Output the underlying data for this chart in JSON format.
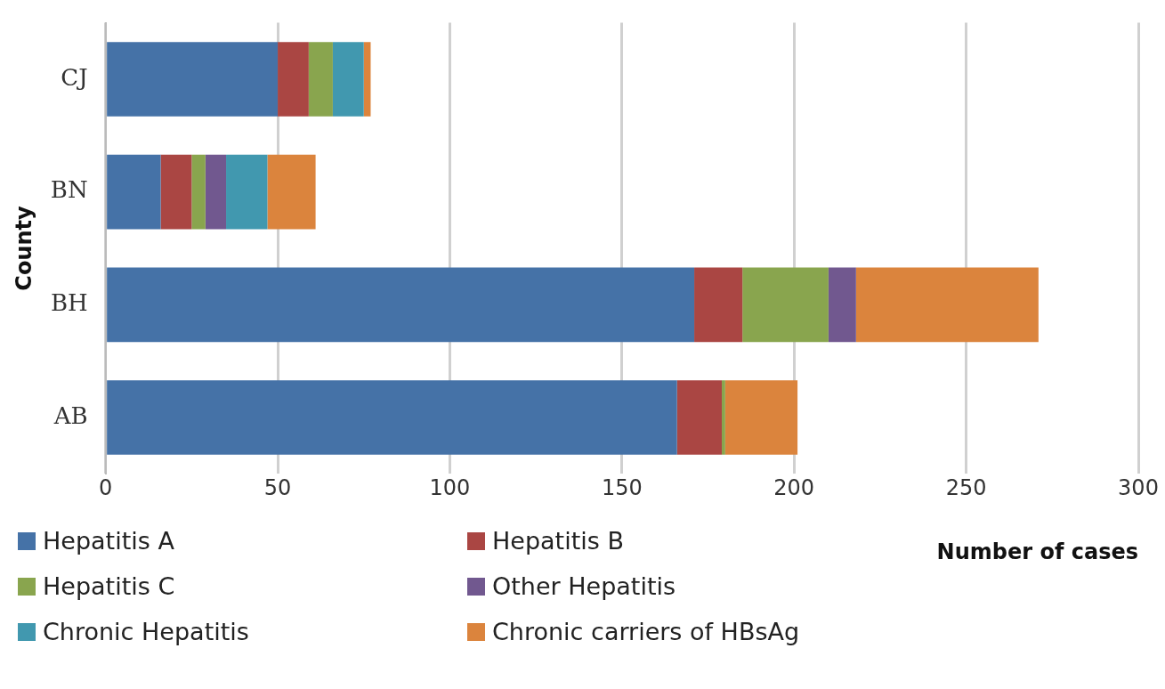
{
  "chart_data": {
    "type": "bar",
    "orientation": "horizontal",
    "stacked": true,
    "xlabel": "Number of cases",
    "ylabel": "County",
    "categories": [
      "CJ",
      "BN",
      "BH",
      "AB"
    ],
    "series": [
      {
        "name": "Hepatitis A",
        "color": "#4572a7",
        "values": [
          50,
          16,
          171,
          166
        ]
      },
      {
        "name": "Hepatitis B",
        "color": "#aa4643",
        "values": [
          9,
          9,
          14,
          13
        ]
      },
      {
        "name": "Hepatitis C",
        "color": "#89a54e",
        "values": [
          7,
          4,
          25,
          1
        ]
      },
      {
        "name": "Other Hepatitis",
        "color": "#71588f",
        "values": [
          0,
          6,
          8,
          0
        ]
      },
      {
        "name": "Chronic Hepatitis",
        "color": "#4198af",
        "values": [
          9,
          12,
          0,
          0
        ]
      },
      {
        "name": "Chronic carriers of HBsAg",
        "color": "#db843d",
        "values": [
          2,
          14,
          53,
          21
        ]
      }
    ],
    "xlim": [
      0,
      300
    ],
    "xticks": [
      0,
      50,
      100,
      150,
      200,
      250,
      300
    ],
    "grid": "x",
    "legend": "bottom"
  }
}
